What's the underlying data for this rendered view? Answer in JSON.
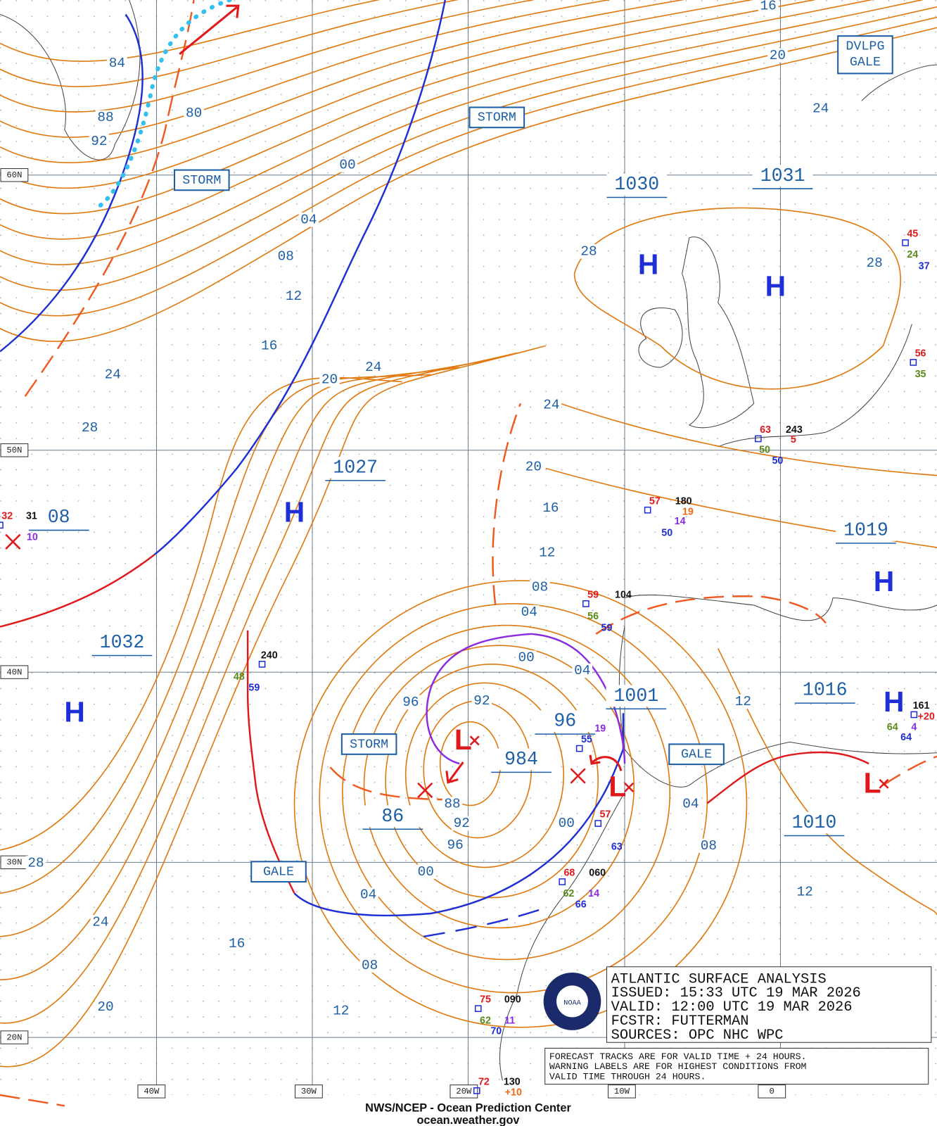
{
  "lat_labels": [
    "60N",
    "50N",
    "40N",
    "30N",
    "20N"
  ],
  "lon_labels": [
    "40W",
    "30W",
    "20W",
    "10W",
    "0"
  ],
  "isobar_labels": [
    "16",
    "20",
    "24",
    "84",
    "88",
    "92",
    "80",
    "00",
    "04",
    "08",
    "12",
    "16",
    "20",
    "24",
    "24",
    "28",
    "28",
    "28",
    "24",
    "20",
    "16",
    "12",
    "08",
    "04",
    "00",
    "04",
    "96",
    "92",
    "88",
    "92",
    "96",
    "00",
    "04",
    "08",
    "12",
    "16",
    "20",
    "24",
    "28",
    "00",
    "04",
    "08",
    "12",
    "12"
  ],
  "pressure_centers": [
    "1030",
    "1031",
    "1027",
    "1019",
    "1032",
    "1001",
    "1016",
    "1010",
    "984",
    "86",
    "08",
    "96"
  ],
  "highs": [
    "H",
    "H",
    "H",
    "H",
    "H",
    "H"
  ],
  "lows": [
    "L",
    "L",
    "L"
  ],
  "warnings": [
    [
      "DVLPG",
      "GALE"
    ],
    [
      "STORM"
    ],
    [
      "STORM"
    ],
    [
      "STORM"
    ],
    [
      "GALE"
    ],
    [
      "GALE"
    ]
  ],
  "stations": [
    {
      "values": [
        "63",
        "243",
        "50",
        "50",
        "5"
      ]
    },
    {
      "values": [
        "57",
        "180",
        "14",
        "50",
        "19"
      ]
    },
    {
      "values": [
        "59",
        "104",
        "56",
        "59"
      ]
    },
    {
      "values": [
        "240",
        "48",
        "59"
      ]
    },
    {
      "values": [
        "68",
        "060",
        "62",
        "14",
        "66"
      ]
    },
    {
      "values": [
        "75",
        "090",
        "62",
        "11",
        "70"
      ]
    },
    {
      "values": [
        "72",
        "130",
        "+10"
      ]
    },
    {
      "values": [
        "161",
        "64",
        "4",
        "64",
        "+20"
      ]
    },
    {
      "values": [
        "45",
        "24",
        "37"
      ]
    },
    {
      "values": [
        "56",
        "35"
      ]
    },
    {
      "values": [
        "32",
        "31",
        "10"
      ]
    },
    {
      "values": [
        "55",
        "19"
      ]
    },
    {
      "values": [
        "57",
        "63"
      ]
    }
  ],
  "analysis_box": {
    "lines": [
      "ATLANTIC SURFACE ANALYSIS",
      "ISSUED:  15:33 UTC 19 MAR 2026",
      "VALID:   12:00 UTC 19 MAR 2026",
      "FCSTR:   FUTTERMAN",
      "SOURCES: OPC NHC WPC"
    ]
  },
  "notes": [
    "FORECAST TRACKS ARE FOR VALID TIME + 24 HOURS.",
    "WARNING LABELS ARE FOR HIGHEST CONDITIONS FROM",
    "VALID TIME THROUGH 24 HOURS."
  ],
  "footer": [
    "NWS/NCEP - Ocean Prediction Center",
    "ocean.weather.gov"
  ]
}
